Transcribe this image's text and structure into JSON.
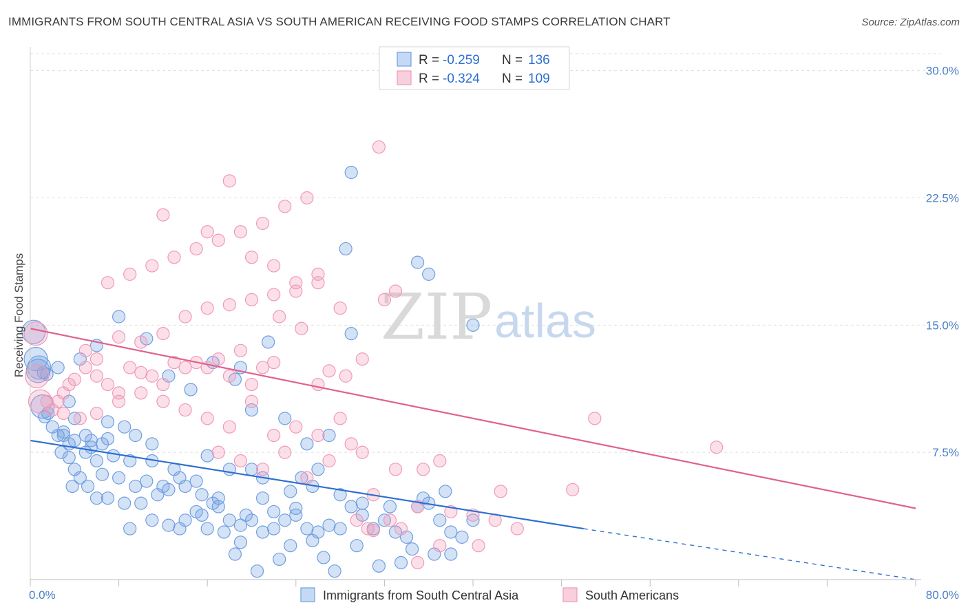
{
  "header": {
    "title": "IMMIGRANTS FROM SOUTH CENTRAL ASIA VS SOUTH AMERICAN RECEIVING FOOD STAMPS CORRELATION CHART",
    "source": "Source: ZipAtlas.com"
  },
  "watermark": {
    "zip": "ZIP",
    "atlas": "atlas"
  },
  "legend": {
    "series": [
      {
        "r_label": "R =",
        "r_value": "-0.259",
        "n_label": "N =",
        "n_value": "136"
      },
      {
        "r_label": "R =",
        "r_value": "-0.324",
        "n_label": "N =",
        "n_value": "109"
      }
    ]
  },
  "chart_data": {
    "type": "scatter",
    "title": "IMMIGRANTS FROM SOUTH CENTRAL ASIA VS SOUTH AMERICAN RECEIVING FOOD STAMPS CORRELATION CHART",
    "xlabel": "",
    "ylabel": "Receiving Food Stamps",
    "xlim": [
      0,
      80
    ],
    "ylim": [
      0,
      31
    ],
    "x_tick_labels": [
      "0.0%",
      "80.0%"
    ],
    "y_ticks": [
      7.5,
      15.0,
      22.5,
      30.0
    ],
    "y_tick_labels": [
      "7.5%",
      "15.0%",
      "22.5%",
      "30.0%"
    ],
    "grid": true,
    "legend_position": "top-center",
    "colors": {
      "blue": "#6f9fe0",
      "blue_line": "#2d6fd0",
      "pink": "#f199b6",
      "pink_line": "#e0628c"
    },
    "series": [
      {
        "name": "Immigrants from South Central Asia",
        "color": "#6f9fe0",
        "trend": {
          "x0": 0,
          "y0": 8.2,
          "x1": 50,
          "y1": 3.0,
          "dash_to_x": 80,
          "dash_to_y": 0.0
        },
        "points": [
          [
            0.3,
            14.6
          ],
          [
            0.5,
            13.0
          ],
          [
            0.8,
            12.5
          ],
          [
            1.2,
            12.2
          ],
          [
            1.5,
            12.1
          ],
          [
            0.7,
            12.3
          ],
          [
            1.1,
            10.2
          ],
          [
            1.6,
            9.8
          ],
          [
            1.3,
            9.6
          ],
          [
            2.0,
            9.0
          ],
          [
            2.5,
            8.5
          ],
          [
            3.0,
            8.5
          ],
          [
            3.5,
            8.0
          ],
          [
            4.0,
            8.2
          ],
          [
            2.8,
            7.5
          ],
          [
            5.0,
            8.5
          ],
          [
            5.5,
            8.2
          ],
          [
            6.5,
            8.0
          ],
          [
            7.0,
            8.3
          ],
          [
            8.5,
            9.0
          ],
          [
            3.5,
            7.2
          ],
          [
            4.0,
            6.5
          ],
          [
            5.0,
            7.5
          ],
          [
            6.0,
            7.0
          ],
          [
            7.5,
            7.3
          ],
          [
            9.0,
            7.0
          ],
          [
            11.0,
            7.0
          ],
          [
            4.5,
            6.0
          ],
          [
            6.5,
            6.2
          ],
          [
            8.0,
            6.0
          ],
          [
            9.5,
            5.5
          ],
          [
            10.5,
            5.8
          ],
          [
            12.0,
            5.5
          ],
          [
            13.5,
            6.0
          ],
          [
            15.0,
            5.8
          ],
          [
            3.8,
            5.5
          ],
          [
            5.2,
            5.5
          ],
          [
            7.0,
            4.8
          ],
          [
            8.5,
            4.5
          ],
          [
            10.0,
            4.5
          ],
          [
            11.5,
            5.0
          ],
          [
            12.5,
            5.3
          ],
          [
            14.0,
            5.5
          ],
          [
            15.5,
            5.0
          ],
          [
            17.0,
            4.8
          ],
          [
            6.0,
            4.8
          ],
          [
            9.0,
            3.0
          ],
          [
            11.0,
            3.5
          ],
          [
            12.5,
            3.2
          ],
          [
            14.0,
            3.5
          ],
          [
            15.5,
            3.8
          ],
          [
            16.0,
            3.0
          ],
          [
            17.5,
            2.8
          ],
          [
            18.0,
            3.5
          ],
          [
            19.0,
            3.2
          ],
          [
            20.0,
            3.5
          ],
          [
            21.0,
            2.8
          ],
          [
            22.0,
            3.0
          ],
          [
            23.0,
            3.5
          ],
          [
            24.0,
            3.8
          ],
          [
            25.0,
            3.0
          ],
          [
            26.0,
            2.8
          ],
          [
            27.0,
            3.2
          ],
          [
            28.0,
            3.0
          ],
          [
            29.0,
            4.3
          ],
          [
            30.0,
            3.8
          ],
          [
            31.0,
            3.0
          ],
          [
            32.0,
            3.5
          ],
          [
            33.0,
            2.8
          ],
          [
            34.0,
            2.5
          ],
          [
            35.0,
            4.3
          ],
          [
            36.0,
            4.5
          ],
          [
            37.0,
            3.5
          ],
          [
            38.0,
            2.8
          ],
          [
            39.0,
            2.5
          ],
          [
            40.0,
            3.5
          ],
          [
            18.5,
            1.5
          ],
          [
            20.5,
            0.5
          ],
          [
            19.0,
            2.2
          ],
          [
            22.5,
            1.2
          ],
          [
            23.5,
            2.0
          ],
          [
            25.5,
            2.3
          ],
          [
            26.5,
            1.3
          ],
          [
            27.5,
            0.5
          ],
          [
            29.5,
            2.0
          ],
          [
            31.5,
            0.8
          ],
          [
            33.5,
            1.0
          ],
          [
            34.5,
            1.8
          ],
          [
            36.5,
            1.5
          ],
          [
            38.0,
            1.5
          ],
          [
            20.0,
            6.5
          ],
          [
            21.0,
            6.0
          ],
          [
            23.5,
            5.2
          ],
          [
            24.5,
            6.0
          ],
          [
            25.5,
            5.5
          ],
          [
            26.0,
            6.5
          ],
          [
            28.0,
            5.0
          ],
          [
            30.0,
            4.5
          ],
          [
            32.5,
            4.3
          ],
          [
            35.5,
            4.8
          ],
          [
            37.5,
            5.2
          ],
          [
            21.0,
            4.8
          ],
          [
            22.0,
            4.0
          ],
          [
            19.5,
            3.8
          ],
          [
            17.0,
            4.3
          ],
          [
            15.0,
            4.0
          ],
          [
            13.5,
            3.0
          ],
          [
            18.0,
            6.5
          ],
          [
            16.5,
            4.5
          ],
          [
            24.0,
            4.2
          ],
          [
            29.0,
            24.0
          ],
          [
            28.5,
            19.5
          ],
          [
            29.0,
            14.5
          ],
          [
            35.0,
            18.7
          ],
          [
            36.0,
            18.0
          ],
          [
            40.0,
            15.0
          ],
          [
            19.0,
            12.5
          ],
          [
            20.0,
            10.0
          ],
          [
            23.0,
            9.5
          ],
          [
            25.0,
            8.0
          ],
          [
            27.0,
            8.5
          ],
          [
            16.0,
            7.3
          ],
          [
            13.0,
            6.5
          ],
          [
            11.0,
            8.0
          ],
          [
            9.5,
            8.5
          ],
          [
            7.0,
            9.3
          ],
          [
            5.5,
            7.8
          ],
          [
            4.0,
            9.5
          ],
          [
            3.0,
            8.7
          ],
          [
            2.5,
            12.5
          ],
          [
            3.5,
            10.5
          ],
          [
            4.5,
            13.0
          ],
          [
            6.0,
            13.8
          ],
          [
            8.0,
            15.5
          ],
          [
            10.5,
            14.2
          ],
          [
            12.5,
            12.0
          ],
          [
            14.5,
            11.2
          ],
          [
            16.5,
            12.8
          ],
          [
            18.5,
            11.8
          ],
          [
            21.5,
            14.0
          ]
        ]
      },
      {
        "name": "South Americans",
        "color": "#f199b6",
        "trend": {
          "x0": 0,
          "y0": 14.8,
          "x1": 80,
          "y1": 4.2
        },
        "points": [
          [
            0.5,
            14.5
          ],
          [
            0.6,
            12.0
          ],
          [
            0.9,
            10.5
          ],
          [
            1.5,
            10.5
          ],
          [
            2.0,
            10.0
          ],
          [
            2.5,
            10.5
          ],
          [
            3.0,
            11.0
          ],
          [
            3.5,
            11.5
          ],
          [
            4.0,
            11.8
          ],
          [
            5.0,
            12.5
          ],
          [
            6.0,
            12.0
          ],
          [
            7.0,
            11.5
          ],
          [
            8.0,
            11.0
          ],
          [
            9.0,
            12.5
          ],
          [
            10.0,
            12.2
          ],
          [
            11.0,
            12.0
          ],
          [
            12.0,
            11.5
          ],
          [
            13.0,
            12.8
          ],
          [
            14.0,
            12.5
          ],
          [
            15.0,
            12.8
          ],
          [
            16.0,
            12.5
          ],
          [
            17.0,
            13.0
          ],
          [
            18.0,
            12.0
          ],
          [
            19.0,
            13.5
          ],
          [
            20.0,
            11.5
          ],
          [
            21.0,
            12.5
          ],
          [
            22.0,
            12.8
          ],
          [
            5.0,
            13.5
          ],
          [
            6.0,
            13.0
          ],
          [
            8.0,
            14.3
          ],
          [
            10.0,
            14.0
          ],
          [
            12.0,
            14.5
          ],
          [
            14.0,
            15.5
          ],
          [
            16.0,
            16.0
          ],
          [
            18.0,
            16.2
          ],
          [
            20.0,
            16.5
          ],
          [
            22.0,
            16.8
          ],
          [
            24.0,
            17.0
          ],
          [
            26.0,
            17.5
          ],
          [
            28.0,
            16.0
          ],
          [
            7.0,
            17.5
          ],
          [
            9.0,
            18.0
          ],
          [
            11.0,
            18.5
          ],
          [
            13.0,
            19.0
          ],
          [
            15.0,
            19.5
          ],
          [
            17.0,
            20.0
          ],
          [
            19.0,
            20.5
          ],
          [
            21.0,
            21.0
          ],
          [
            23.0,
            22.0
          ],
          [
            25.0,
            22.5
          ],
          [
            12.0,
            21.5
          ],
          [
            16.0,
            20.5
          ],
          [
            18.0,
            23.5
          ],
          [
            20.0,
            19.0
          ],
          [
            22.0,
            18.5
          ],
          [
            24.0,
            17.5
          ],
          [
            26.0,
            18.0
          ],
          [
            31.5,
            25.5
          ],
          [
            32.0,
            16.5
          ],
          [
            33.0,
            17.0
          ],
          [
            3.0,
            9.8
          ],
          [
            4.5,
            9.5
          ],
          [
            6.0,
            9.8
          ],
          [
            8.0,
            10.5
          ],
          [
            10.0,
            11.0
          ],
          [
            12.0,
            10.5
          ],
          [
            14.0,
            10.0
          ],
          [
            16.0,
            9.5
          ],
          [
            18.0,
            9.0
          ],
          [
            20.0,
            10.5
          ],
          [
            22.0,
            8.5
          ],
          [
            24.0,
            9.0
          ],
          [
            26.0,
            8.5
          ],
          [
            28.0,
            9.5
          ],
          [
            30.0,
            7.5
          ],
          [
            17.0,
            7.5
          ],
          [
            19.0,
            7.0
          ],
          [
            21.0,
            6.5
          ],
          [
            23.0,
            7.5
          ],
          [
            25.0,
            6.0
          ],
          [
            27.0,
            7.0
          ],
          [
            29.0,
            8.0
          ],
          [
            31.0,
            5.0
          ],
          [
            33.0,
            6.5
          ],
          [
            35.0,
            4.3
          ],
          [
            37.0,
            7.0
          ],
          [
            38.0,
            4.0
          ],
          [
            40.0,
            3.8
          ],
          [
            42.0,
            3.5
          ],
          [
            44.0,
            3.0
          ],
          [
            29.5,
            3.5
          ],
          [
            30.5,
            3.0
          ],
          [
            31.0,
            2.9
          ],
          [
            32.5,
            3.5
          ],
          [
            33.5,
            3.0
          ],
          [
            37.0,
            2.0
          ],
          [
            40.5,
            2.0
          ],
          [
            42.5,
            5.2
          ],
          [
            49.0,
            5.3
          ],
          [
            51.0,
            9.5
          ],
          [
            62.0,
            7.8
          ],
          [
            35.5,
            6.5
          ],
          [
            35.0,
            1.0
          ],
          [
            26.0,
            11.5
          ],
          [
            27.0,
            12.3
          ],
          [
            28.5,
            12.0
          ],
          [
            30.0,
            13.0
          ],
          [
            24.5,
            14.8
          ],
          [
            22.5,
            15.5
          ]
        ]
      }
    ],
    "legend_entries": [
      "Immigrants from South Central Asia",
      "South Americans"
    ]
  }
}
